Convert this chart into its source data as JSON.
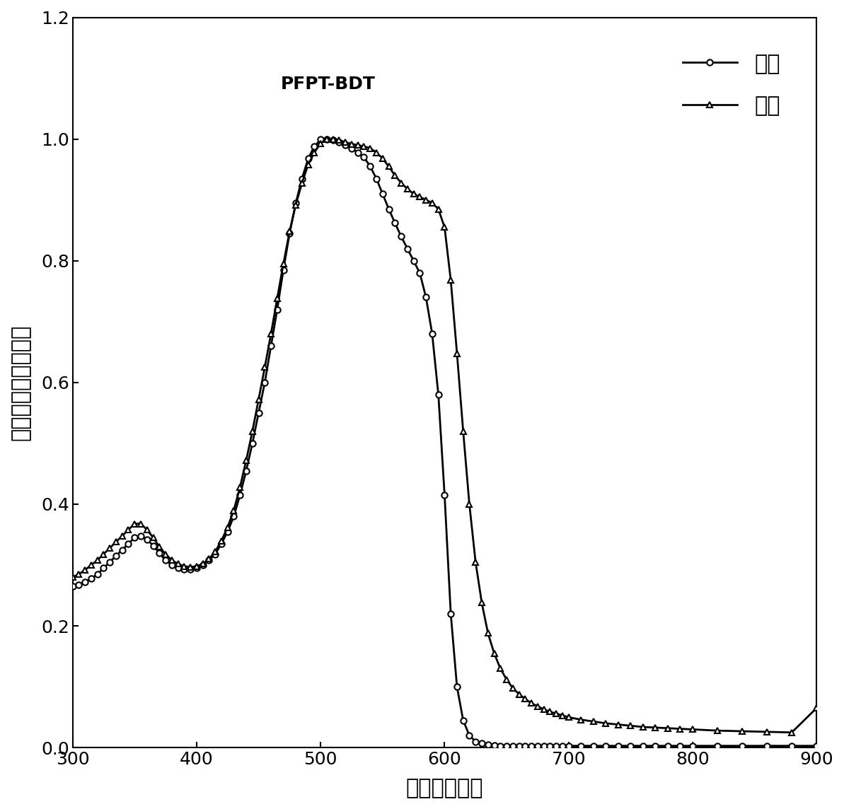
{
  "title_text": "PFPT-BDT",
  "xlabel": "波长（纳米）",
  "ylabel": "吸收强度（归一化）",
  "xlim": [
    300,
    900
  ],
  "ylim": [
    0,
    1.2
  ],
  "xticks": [
    300,
    400,
    500,
    600,
    700,
    800,
    900
  ],
  "yticks": [
    0.0,
    0.2,
    0.4,
    0.6,
    0.8,
    1.0,
    1.2
  ],
  "legend_solution": "溶液",
  "legend_film": "薄膜",
  "solution_x": [
    300,
    305,
    310,
    315,
    320,
    325,
    330,
    335,
    340,
    345,
    350,
    355,
    360,
    365,
    370,
    375,
    380,
    385,
    390,
    395,
    400,
    405,
    410,
    415,
    420,
    425,
    430,
    435,
    440,
    445,
    450,
    455,
    460,
    465,
    470,
    475,
    480,
    485,
    490,
    495,
    500,
    505,
    510,
    515,
    520,
    525,
    530,
    535,
    540,
    545,
    550,
    555,
    560,
    565,
    570,
    575,
    580,
    585,
    590,
    595,
    600,
    605,
    610,
    615,
    620,
    625,
    630,
    635,
    640,
    645,
    650,
    655,
    660,
    665,
    670,
    675,
    680,
    685,
    690,
    695,
    700,
    710,
    720,
    730,
    740,
    750,
    760,
    770,
    780,
    790,
    800,
    820,
    840,
    860,
    880,
    900
  ],
  "solution_y": [
    0.265,
    0.268,
    0.272,
    0.278,
    0.285,
    0.295,
    0.305,
    0.315,
    0.325,
    0.335,
    0.345,
    0.348,
    0.342,
    0.332,
    0.32,
    0.308,
    0.3,
    0.295,
    0.293,
    0.293,
    0.295,
    0.3,
    0.308,
    0.318,
    0.335,
    0.355,
    0.38,
    0.415,
    0.455,
    0.5,
    0.55,
    0.6,
    0.66,
    0.72,
    0.785,
    0.845,
    0.895,
    0.935,
    0.968,
    0.988,
    0.999,
    1.0,
    0.998,
    0.995,
    0.99,
    0.985,
    0.978,
    0.97,
    0.955,
    0.935,
    0.91,
    0.885,
    0.862,
    0.84,
    0.82,
    0.8,
    0.78,
    0.74,
    0.68,
    0.58,
    0.415,
    0.22,
    0.1,
    0.045,
    0.02,
    0.01,
    0.007,
    0.005,
    0.004,
    0.003,
    0.003,
    0.003,
    0.003,
    0.003,
    0.003,
    0.003,
    0.003,
    0.003,
    0.003,
    0.003,
    0.003,
    0.003,
    0.003,
    0.003,
    0.003,
    0.003,
    0.003,
    0.003,
    0.003,
    0.003,
    0.003,
    0.003,
    0.003,
    0.003,
    0.003,
    0.003
  ],
  "film_x": [
    300,
    305,
    310,
    315,
    320,
    325,
    330,
    335,
    340,
    345,
    350,
    355,
    360,
    365,
    370,
    375,
    380,
    385,
    390,
    395,
    400,
    405,
    410,
    415,
    420,
    425,
    430,
    435,
    440,
    445,
    450,
    455,
    460,
    465,
    470,
    475,
    480,
    485,
    490,
    495,
    500,
    505,
    510,
    515,
    520,
    525,
    530,
    535,
    540,
    545,
    550,
    555,
    560,
    565,
    570,
    575,
    580,
    585,
    590,
    595,
    600,
    605,
    610,
    615,
    620,
    625,
    630,
    635,
    640,
    645,
    650,
    655,
    660,
    665,
    670,
    675,
    680,
    685,
    690,
    695,
    700,
    710,
    720,
    730,
    740,
    750,
    760,
    770,
    780,
    790,
    800,
    820,
    840,
    860,
    880,
    900
  ],
  "film_y": [
    0.28,
    0.285,
    0.292,
    0.3,
    0.308,
    0.318,
    0.328,
    0.338,
    0.348,
    0.358,
    0.368,
    0.368,
    0.358,
    0.345,
    0.33,
    0.318,
    0.308,
    0.302,
    0.298,
    0.297,
    0.298,
    0.302,
    0.31,
    0.322,
    0.34,
    0.362,
    0.39,
    0.428,
    0.472,
    0.52,
    0.572,
    0.625,
    0.68,
    0.738,
    0.795,
    0.848,
    0.892,
    0.928,
    0.958,
    0.978,
    0.993,
    1.0,
    1.0,
    0.998,
    0.995,
    0.992,
    0.99,
    0.988,
    0.985,
    0.978,
    0.968,
    0.955,
    0.94,
    0.928,
    0.918,
    0.91,
    0.905,
    0.9,
    0.895,
    0.885,
    0.855,
    0.768,
    0.648,
    0.52,
    0.4,
    0.305,
    0.238,
    0.188,
    0.155,
    0.13,
    0.112,
    0.098,
    0.088,
    0.08,
    0.073,
    0.068,
    0.063,
    0.059,
    0.056,
    0.053,
    0.05,
    0.046,
    0.043,
    0.04,
    0.038,
    0.036,
    0.034,
    0.033,
    0.032,
    0.031,
    0.03,
    0.028,
    0.027,
    0.026,
    0.025,
    0.065
  ],
  "line_color": "#000000",
  "line_width": 2.0,
  "marker_size": 6,
  "background_color": "#ffffff",
  "annotation_fontsize": 18,
  "axis_label_fontsize": 22,
  "tick_label_fontsize": 18,
  "legend_fontsize": 22
}
